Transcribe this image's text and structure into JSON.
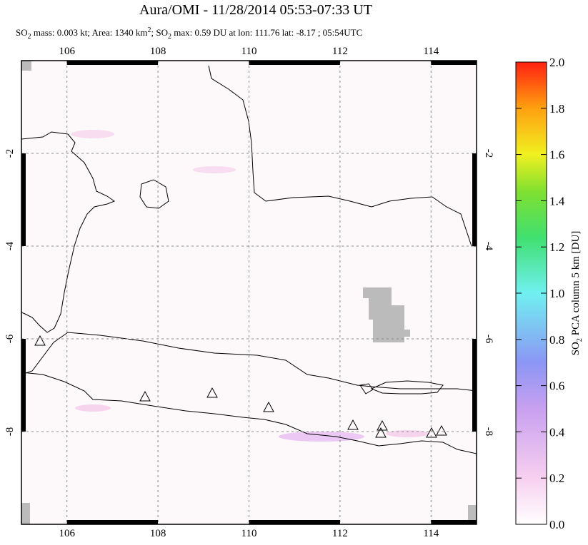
{
  "title": "Aura/OMI - 11/28/2014 05:53-07:33 UT",
  "subtitle": [
    "SO",
    "2",
    " mass: 0.003 kt; Area: 1340 km",
    "2",
    "; SO",
    "2",
    " max: 0.59 DU at lon: 111.76 lat: -8.17 ; 05:54UTC"
  ],
  "map": {
    "xlim": [
      105,
      115
    ],
    "ylim": [
      -10,
      0
    ],
    "xticks": [
      106,
      108,
      110,
      112,
      114
    ],
    "yticks": [
      -2,
      -4,
      -6,
      -8
    ],
    "grid": true
  },
  "colorbar": {
    "label": [
      "SO",
      "2",
      " PCA column 5 km [DU]"
    ],
    "lim": [
      0,
      2
    ],
    "ticks": [
      {
        "value": 0,
        "label": "0.0"
      },
      0.2,
      0.4,
      0.6,
      0.8,
      {
        "value": 1,
        "label": "1.0"
      },
      1.2,
      1.4,
      1.6,
      1.8,
      {
        "value": 2,
        "label": "2.0"
      }
    ]
  }
}
